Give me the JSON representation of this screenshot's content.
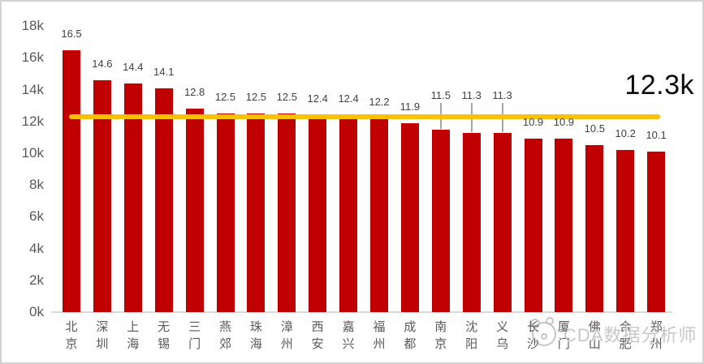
{
  "chart_data": {
    "type": "bar",
    "title": "",
    "categories": [
      "北京",
      "深圳",
      "上海",
      "无锡",
      "三门",
      "燕郊",
      "珠海",
      "漳州",
      "西安",
      "嘉兴",
      "福州",
      "成都",
      "南京",
      "沈阳",
      "义乌",
      "长沙",
      "厦门",
      "佛山",
      "合肥",
      "郑州"
    ],
    "values": [
      16.5,
      14.6,
      14.4,
      14.1,
      12.8,
      12.5,
      12.5,
      12.5,
      12.4,
      12.4,
      12.2,
      11.9,
      11.5,
      11.3,
      11.3,
      10.9,
      10.9,
      10.5,
      10.2,
      10.1
    ],
    "value_labels": [
      "16.5",
      "14.6",
      "14.4",
      "14.1",
      "12.8",
      "12.5",
      "12.5",
      "12.5",
      "12.4",
      "12.4",
      "12.2",
      "11.9",
      "11.5",
      "11.3",
      "11.3",
      "10.9",
      "10.9",
      "10.5",
      "10.2",
      "10.1"
    ],
    "y_ticks": [
      "0k",
      "2k",
      "4k",
      "6k",
      "8k",
      "10k",
      "12k",
      "14k",
      "16k",
      "18k"
    ],
    "ylim": [
      0,
      18
    ],
    "unit": "k",
    "grid": "off",
    "legend": "none",
    "reference_line": {
      "value": 12.3,
      "label": "12.3k"
    },
    "leader_line_bar_indices": [
      12,
      13,
      14
    ],
    "colors": {
      "bar": "#C00000",
      "reference_line": "#FFC000",
      "axis_text": "#595959",
      "value_text": "#404040",
      "leader_line": "#A6A6A6",
      "axis_line": "#D9D9D9"
    }
  },
  "watermark": {
    "logo": "cda-mascot-icon",
    "text": "CDA数据分析师"
  }
}
